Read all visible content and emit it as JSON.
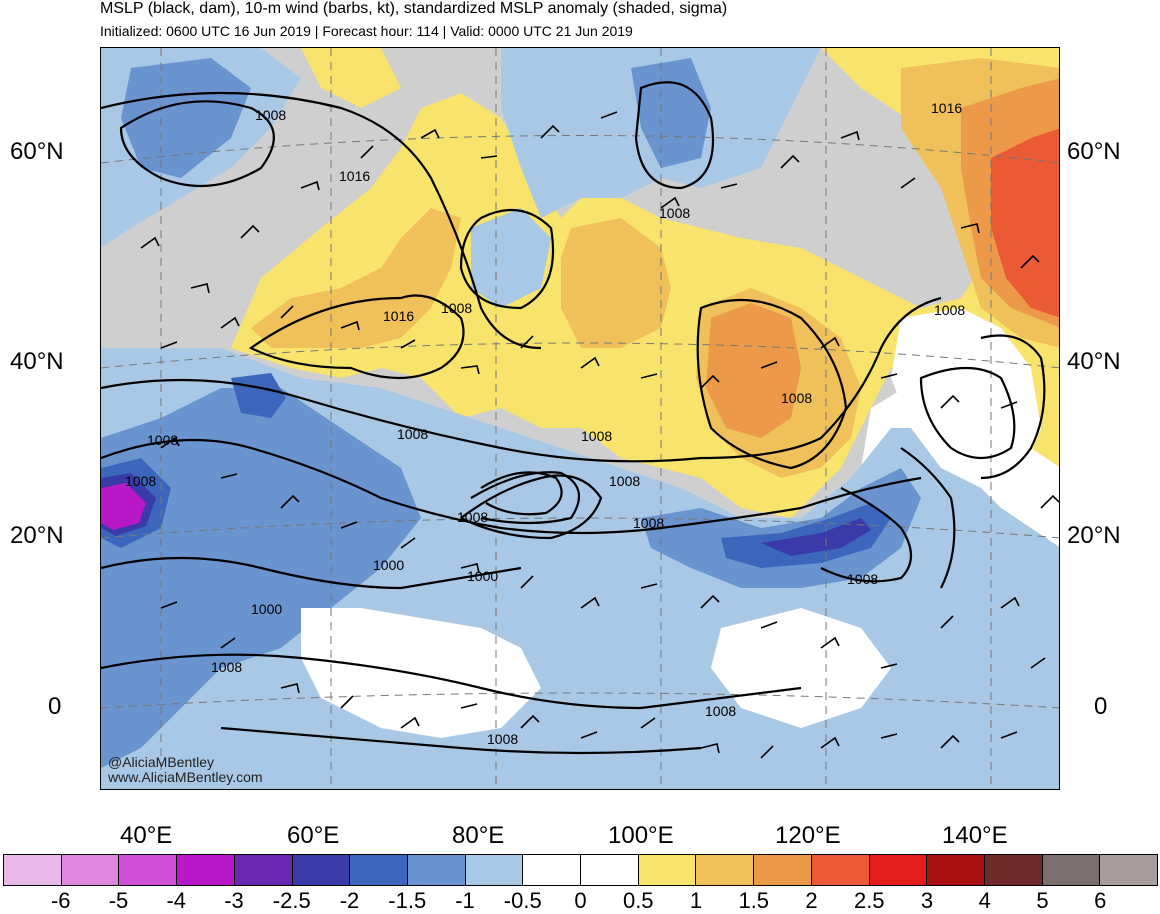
{
  "header": {
    "title": "MSLP (black, dam), 10-m wind (barbs, kt), standardized MSLP anomaly (shaded, sigma)",
    "subtitle": "Initialized: 0600 UTC 16 Jun 2019 | Forecast hour: 114 | Valid: 0000 UTC 21 Jun 2019"
  },
  "map": {
    "lat_labels": [
      "60°N",
      "40°N",
      "20°N",
      "0"
    ],
    "lon_labels": [
      "40°E",
      "60°E",
      "80°E",
      "100°E",
      "120°E",
      "140°E"
    ],
    "contour_labels": [
      "1008",
      "1016",
      "1008",
      "1016",
      "1008",
      "1016",
      "1008",
      "1008",
      "1008",
      "1008",
      "1008",
      "1008",
      "1008",
      "1008",
      "1008",
      "1000",
      "1000",
      "1000",
      "1008",
      "1008",
      "1008",
      "1008"
    ],
    "credit_line1": "@AliciaMBentley",
    "credit_line2": "www.AliciaMBentley.com"
  },
  "colorbar": {
    "colors": [
      "#e8b8e8",
      "#e088e0",
      "#d050d8",
      "#b818c8",
      "#6a28b0",
      "#3a3aa8",
      "#3c66bc",
      "#6a94d0",
      "#a8c8e6",
      "#ffffff",
      "#ffffff",
      "#f8e46c",
      "#f0c05a",
      "#ec9a4a",
      "#ea5a34",
      "#e41c1c",
      "#a81010",
      "#6e2a2a",
      "#7a6e6e",
      "#a89c9c"
    ],
    "labels": [
      "-6",
      "-5",
      "-4",
      "-3",
      "-2.5",
      "-2",
      "-1.5",
      "-1",
      "-0.5",
      "0",
      "0.5",
      "1",
      "1.5",
      "2",
      "2.5",
      "3",
      "4",
      "5",
      "6"
    ]
  }
}
